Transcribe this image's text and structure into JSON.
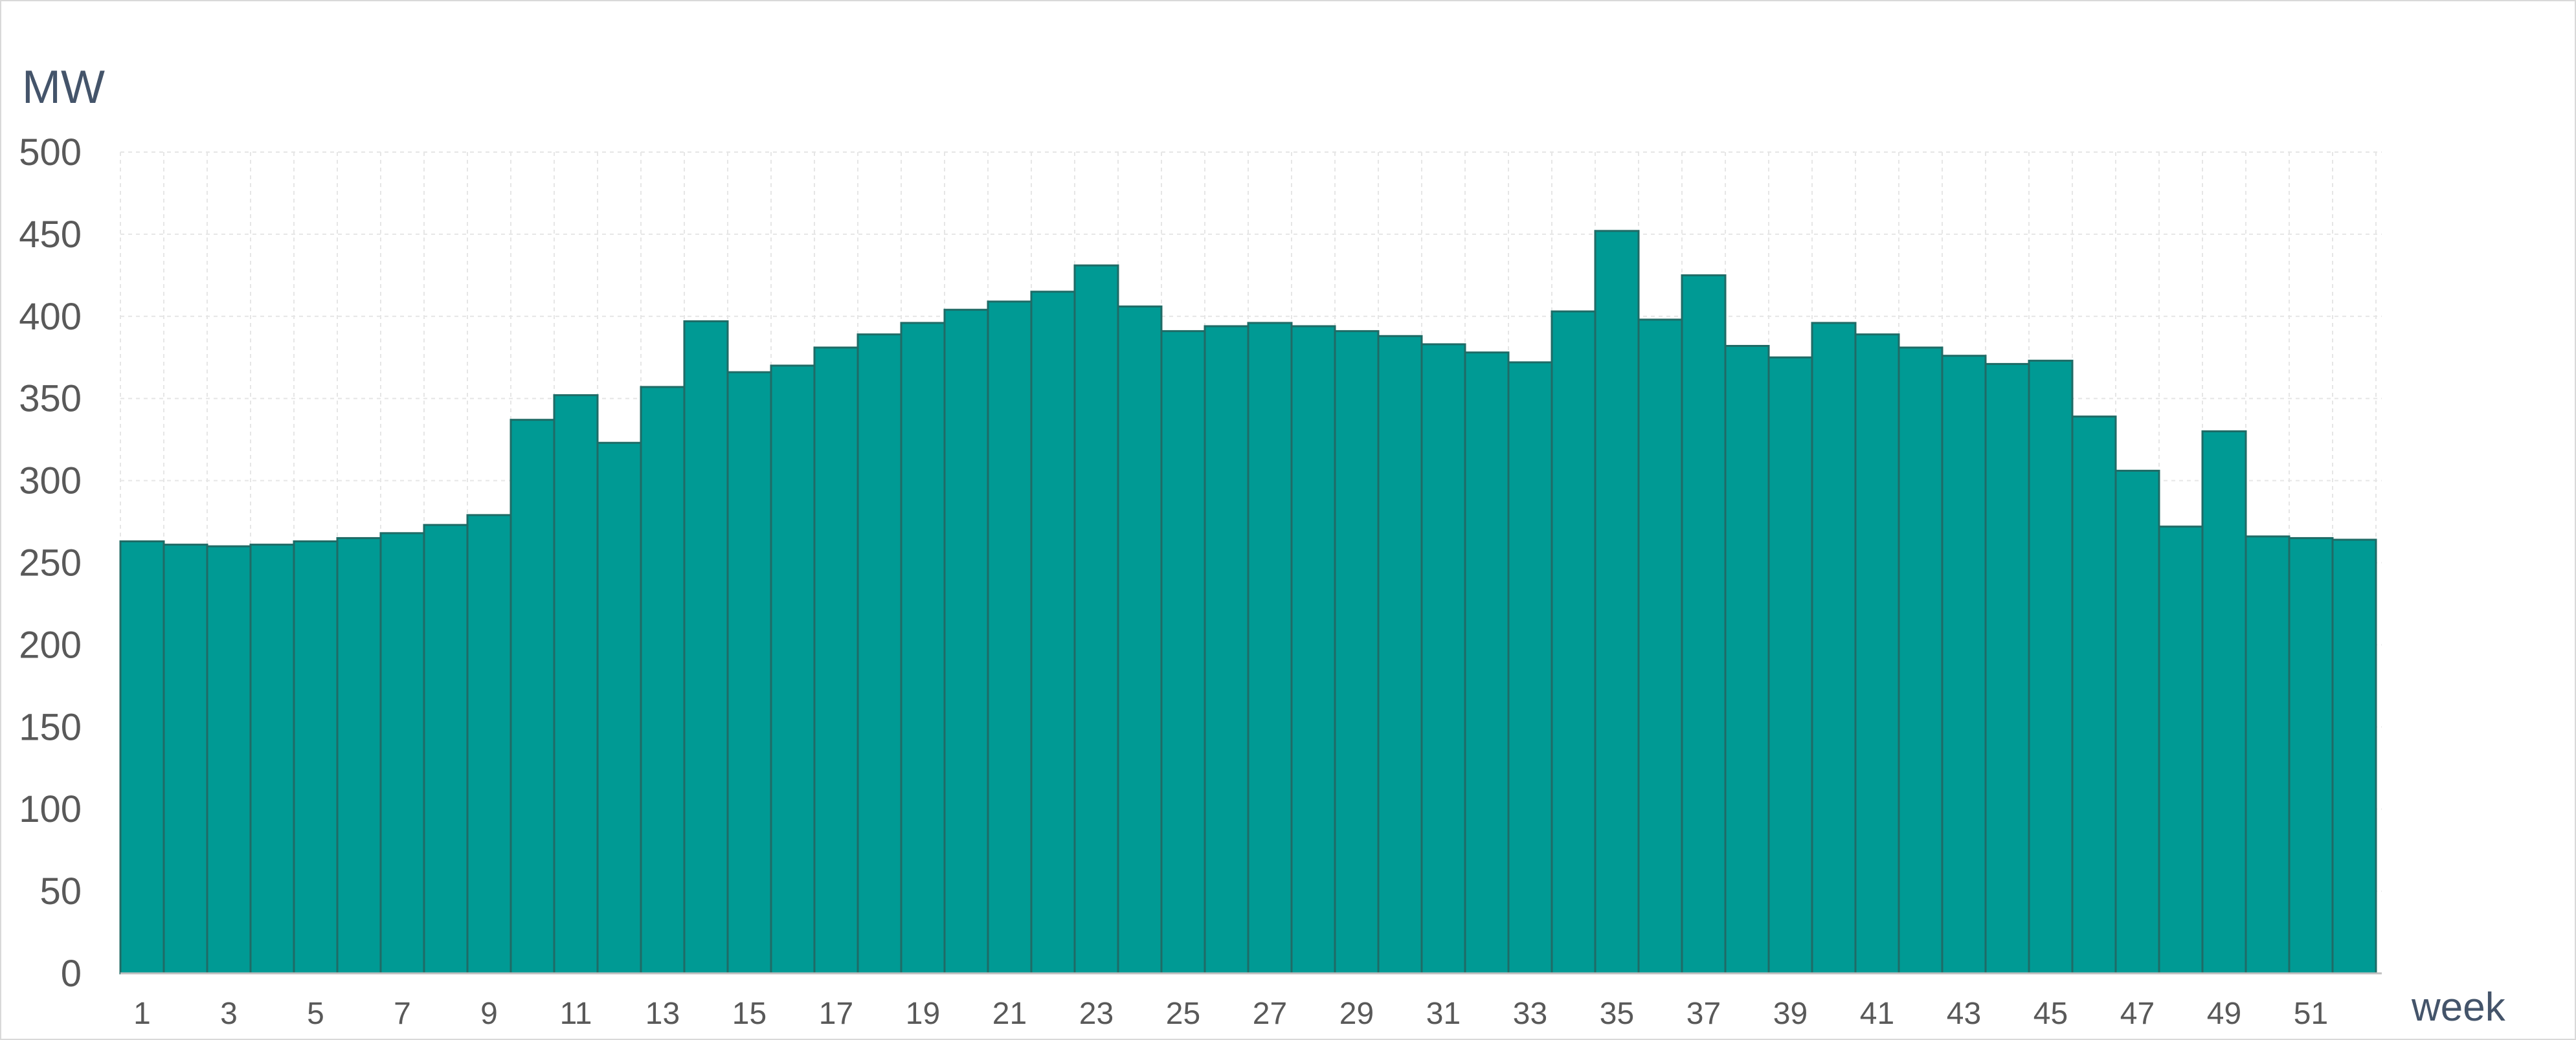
{
  "chart_data": {
    "type": "bar",
    "title": "",
    "ylabel": "MW",
    "xlabel": "week",
    "ylim": [
      0,
      500
    ],
    "yticks": [
      0,
      50,
      100,
      150,
      200,
      250,
      300,
      350,
      400,
      450,
      500
    ],
    "categories": [
      1,
      2,
      3,
      4,
      5,
      6,
      7,
      8,
      9,
      10,
      11,
      12,
      13,
      14,
      15,
      16,
      17,
      18,
      19,
      20,
      21,
      22,
      23,
      24,
      25,
      26,
      27,
      28,
      29,
      30,
      31,
      32,
      33,
      34,
      35,
      36,
      37,
      38,
      39,
      40,
      41,
      42,
      43,
      44,
      45,
      46,
      47,
      48,
      49,
      50,
      51,
      52
    ],
    "x_tick_labels": [
      "1",
      "3",
      "5",
      "7",
      "9",
      "11",
      "13",
      "15",
      "17",
      "19",
      "21",
      "23",
      "25",
      "27",
      "29",
      "31",
      "33",
      "35",
      "37",
      "39",
      "41",
      "43",
      "45",
      "47",
      "49",
      "51"
    ],
    "values": [
      263,
      261,
      260,
      261,
      263,
      265,
      268,
      273,
      279,
      337,
      352,
      323,
      357,
      397,
      366,
      370,
      381,
      389,
      396,
      404,
      409,
      415,
      431,
      406,
      391,
      394,
      396,
      394,
      391,
      388,
      383,
      378,
      372,
      403,
      452,
      398,
      425,
      382,
      375,
      396,
      389,
      381,
      376,
      371,
      373,
      339,
      306,
      272,
      330,
      266,
      265,
      264
    ],
    "grid": {
      "horizontal": true,
      "vertical": true
    },
    "colors": {
      "bar_fill": "#009a94",
      "bar_stroke": "#1f6b66",
      "grid": "#e6e6e6",
      "tick_text": "#595959",
      "axis_title": "#44546a",
      "frame": "#d9d9d9"
    }
  }
}
